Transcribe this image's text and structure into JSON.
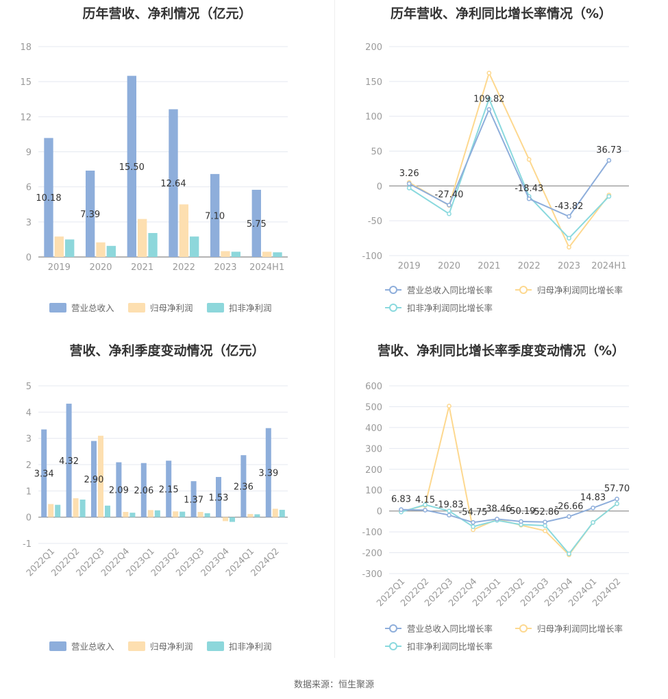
{
  "source": "数据来源：恒生聚源",
  "colors": {
    "revenue": "#8eaedb",
    "net_profit": "#fddfb0",
    "deducted_profit": "#8dd7db",
    "rev_line": "#8eaedb",
    "np_line": "#fdd88f",
    "dp_line": "#8ad9de"
  },
  "chart_data": [
    {
      "id": "annual-bar",
      "type": "bar",
      "title": "历年营收、净利情况（亿元）",
      "categories": [
        "2019",
        "2020",
        "2021",
        "2022",
        "2023",
        "2024H1"
      ],
      "ylim": [
        0,
        18
      ],
      "yticks": [
        0,
        3,
        6,
        9,
        12,
        15,
        18
      ],
      "series": [
        {
          "name": "营业总收入",
          "values": [
            10.18,
            7.39,
            15.5,
            12.64,
            7.1,
            5.75
          ],
          "labels": [
            "10.18",
            "7.39",
            "15.50",
            "12.64",
            "7.10",
            "5.75"
          ]
        },
        {
          "name": "归母净利润",
          "values": [
            1.75,
            1.25,
            3.25,
            4.5,
            0.5,
            0.45
          ]
        },
        {
          "name": "扣非净利润",
          "values": [
            1.5,
            0.95,
            2.05,
            1.75,
            0.45,
            0.4
          ]
        }
      ],
      "grid": true,
      "legend": "bottom"
    },
    {
      "id": "annual-line",
      "type": "line",
      "title": "历年营收、净利同比增长率情况（%）",
      "categories": [
        "2019",
        "2020",
        "2021",
        "2022",
        "2023",
        "2024H1"
      ],
      "ylim": [
        -100,
        200
      ],
      "yticks": [
        -100,
        -50,
        0,
        50,
        100,
        150,
        200
      ],
      "series": [
        {
          "name": "营业总收入同比增长率",
          "values": [
            3.26,
            -27.4,
            109.82,
            -18.43,
            -43.82,
            36.73
          ],
          "labels": [
            "3.26",
            "-27.40",
            "109.82",
            "-18.43",
            "-43.82",
            "36.73"
          ]
        },
        {
          "name": "归母净利润同比增长率",
          "values": [
            5,
            -28,
            162,
            38,
            -88,
            -13
          ]
        },
        {
          "name": "扣非净利润同比增长率",
          "values": [
            -3,
            -40,
            125,
            -15,
            -75,
            -15
          ]
        }
      ],
      "grid": true,
      "legend": "bottom"
    },
    {
      "id": "quarter-bar",
      "type": "bar",
      "title": "营收、净利季度变动情况（亿元）",
      "categories": [
        "2022Q1",
        "2022Q2",
        "2022Q3",
        "2022Q4",
        "2023Q1",
        "2023Q2",
        "2023Q3",
        "2023Q4",
        "2024Q1",
        "2024Q2"
      ],
      "ylim": [
        -1,
        5
      ],
      "yticks": [
        -1,
        0,
        1,
        2,
        3,
        4,
        5
      ],
      "series": [
        {
          "name": "营业总收入",
          "values": [
            3.34,
            4.32,
            2.9,
            2.09,
            2.06,
            2.15,
            1.37,
            1.53,
            2.36,
            3.39
          ],
          "labels": [
            "3.34",
            "4.32",
            "2.90",
            "2.09",
            "2.06",
            "2.15",
            "1.37",
            "1.53",
            "2.36",
            "3.39"
          ]
        },
        {
          "name": "归母净利润",
          "values": [
            0.5,
            0.72,
            3.1,
            0.2,
            0.27,
            0.22,
            0.2,
            -0.15,
            0.12,
            0.32
          ]
        },
        {
          "name": "扣非净利润",
          "values": [
            0.47,
            0.67,
            0.44,
            0.17,
            0.26,
            0.21,
            0.15,
            -0.18,
            0.11,
            0.28
          ]
        }
      ],
      "grid": true,
      "legend": "bottom"
    },
    {
      "id": "quarter-line",
      "type": "line",
      "title": "营收、净利同比增长率季度变动情况（%）",
      "categories": [
        "2022Q1",
        "2022Q2",
        "2022Q3",
        "2022Q4",
        "2023Q1",
        "2023Q2",
        "2023Q3",
        "2023Q4",
        "2024Q1",
        "2024Q2"
      ],
      "ylim": [
        -300,
        600
      ],
      "yticks": [
        -300,
        -200,
        -100,
        0,
        100,
        200,
        300,
        400,
        500,
        600
      ],
      "series": [
        {
          "name": "营业总收入同比增长率",
          "values": [
            6.83,
            4.15,
            -19.83,
            -54.75,
            -38.46,
            -50.19,
            -52.86,
            -26.66,
            14.83,
            57.7
          ],
          "labels": [
            "6.83",
            "4.15",
            "-19.83",
            "-54.75",
            "-38.46",
            "-50.19",
            "-52.86",
            "-26.66",
            "14.83",
            "57.70"
          ]
        },
        {
          "name": "归母净利润同比增长率",
          "values": [
            -3,
            27,
            503,
            -90,
            -40,
            -68,
            -95,
            -210,
            -55,
            35
          ]
        },
        {
          "name": "扣非净利润同比增长率",
          "values": [
            -5,
            30,
            0,
            -75,
            -45,
            -65,
            -70,
            -205,
            -55,
            35
          ]
        }
      ],
      "grid": true,
      "legend": "bottom"
    }
  ]
}
